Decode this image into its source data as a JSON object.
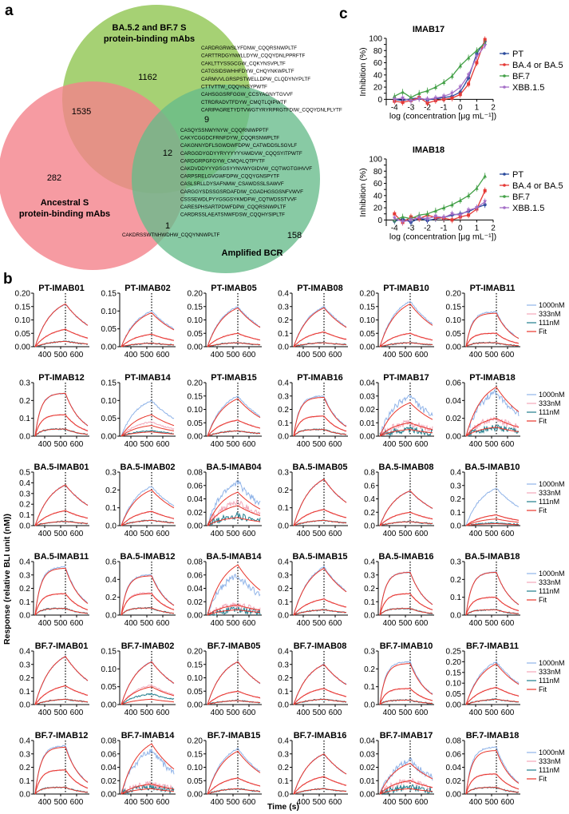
{
  "panels": {
    "a": "a",
    "b": "b",
    "c": "c"
  },
  "venn": {
    "circle_top_label": [
      "BA.5.2 and BF.7 S",
      "protein-binding mAbs"
    ],
    "circle_left_label": [
      "Ancestral S",
      "protein-binding mAbs"
    ],
    "circle_right_label": "Amplified BCR",
    "colors": {
      "top": "#9ccc65",
      "left": "#f4828b",
      "right": "#66bb8a"
    },
    "counts": {
      "top_only": "1162",
      "left_only": "282",
      "right_only": "158",
      "top_left": "1535",
      "top_right": "9",
      "all_three": "12",
      "left_right": "1"
    },
    "seq_top_right": [
      "CARDRGRWSLYFDNW_CQQRSNWPLTF",
      "CARTTRDGYNWLLDYW_CQQYDNLPPRFTF",
      "CAKLTTYSSGCGW_CQKYNSVPLTF",
      "CATGSIDSWHHFDYW_CHQYNKWPLTF",
      "CARMVVLGRSPSTWELLDPW_CLQDYNYPLTF",
      "CTTVTTW_CQQYNSYPWTF",
      "CAHSGGSRFGGW_CCSYAGNYTGVVF",
      "CTRDRADVTFDYW_CMQTLQIPWTF",
      "CARIPAGRETYDTVWGTYRYRPRGTFDIW_CQQYDNLPLYTF"
    ],
    "seq_all_three": [
      "CASQYSSNWYNYW_CQQRNIWPPTF",
      "CAKYCGGDCFRNFDYW_CQQRSNWPLTF",
      "CAKGNNYDFLSGWDWFDPW_CATWDDSLSGVLF",
      "CARGGDYGDYYRYYYYYYAMDVW_CQQSYITPWTF",
      "CARDGRPGFGYW_CMQALQTPYTF",
      "CAKDVDDYYYGSGSYYNVWYGIDVW_CQTWGTGIHVVF",
      "CARPSRELGVGWFDPW_CQQYGNSPYTF",
      "CASLSRLLDYSAFNMW_CSAWDSSLSAWVF",
      "CARGGYSDSSGSRDAFDIW_CGADHGSGSNFVWVF",
      "CSSSEWDLPYYGSGSYKMDFW_CQTWDSSTVVF",
      "CARESPHSARTPDWFDPW_CQQRSNWPLTF",
      "CARDRSSLAEATSNWFDSW_CQQHYSIPLTF"
    ],
    "seq_left_right": "CAKDRSSWTNHWDHW_CQQYNNWPLTF"
  },
  "panel_b": {
    "y_axis_label": "Response (relative BLI unit (nM))",
    "x_axis_label": "Time (s)",
    "x_ticks": [
      "400",
      "500",
      "600"
    ],
    "legend": [
      "1000nM",
      "333nM",
      "111nM",
      "Fit"
    ],
    "legend_colors": [
      "#8fb3e8",
      "#f2a7b9",
      "#1f7d8c",
      "#e8362b"
    ]
  },
  "chart_data": [
    {
      "type": "line",
      "title": "IMAB17",
      "xlabel": "log (concentration [μg mL⁻¹])",
      "ylabel": "Inhibition (%)",
      "xlim": [
        -4.5,
        2
      ],
      "ylim": [
        -10,
        100
      ],
      "x_ticks": [
        -4,
        -3,
        -2,
        -1,
        0,
        1,
        2
      ],
      "y_ticks": [
        0,
        10,
        20,
        30,
        40,
        50,
        60,
        70,
        80,
        90,
        100
      ],
      "x": [
        -4,
        -3.5,
        -3,
        -2.5,
        -2,
        -1.5,
        -1,
        -0.5,
        0,
        0.5,
        1,
        1.5
      ],
      "series": [
        {
          "name": "PT",
          "color": "#2a4a9c",
          "marker": "circle",
          "values": [
            0,
            -2,
            1,
            2,
            -1,
            1,
            3,
            5,
            12,
            35,
            75,
            95
          ]
        },
        {
          "name": "BA.4 or BA.5",
          "color": "#e53935",
          "marker": "square",
          "values": [
            -3,
            -5,
            -2,
            3,
            -6,
            -2,
            0,
            2,
            8,
            25,
            60,
            98
          ]
        },
        {
          "name": "BF.7",
          "color": "#43a047",
          "marker": "triangle",
          "values": [
            5,
            12,
            3,
            10,
            14,
            20,
            28,
            38,
            55,
            68,
            80,
            92
          ]
        },
        {
          "name": "XBB.1.5",
          "color": "#a46ec7",
          "marker": "triangle-down",
          "values": [
            0,
            2,
            -3,
            1,
            0,
            2,
            5,
            10,
            20,
            40,
            70,
            88
          ]
        }
      ]
    },
    {
      "type": "line",
      "title": "IMAB18",
      "xlabel": "log (concentration [μg mL⁻¹])",
      "ylabel": "Inhibition (%)",
      "xlim": [
        -4.5,
        2
      ],
      "ylim": [
        -10,
        100
      ],
      "x_ticks": [
        -4,
        -3,
        -2,
        -1,
        0,
        1,
        2
      ],
      "y_ticks": [
        0,
        10,
        20,
        30,
        40,
        50,
        60,
        70,
        80,
        90,
        100
      ],
      "x": [
        -4,
        -3.5,
        -3,
        -2.5,
        -2,
        -1.5,
        -1,
        -0.5,
        0,
        0.5,
        1,
        1.5
      ],
      "series": [
        {
          "name": "PT",
          "color": "#2a4a9c",
          "marker": "circle",
          "values": [
            -2,
            2,
            -4,
            3,
            -1,
            2,
            4,
            8,
            10,
            14,
            20,
            25
          ]
        },
        {
          "name": "BA.4 or BA.5",
          "color": "#e53935",
          "marker": "square",
          "values": [
            10,
            -4,
            5,
            2,
            8,
            4,
            3,
            0,
            5,
            8,
            18,
            48
          ]
        },
        {
          "name": "BF.7",
          "color": "#43a047",
          "marker": "triangle",
          "values": [
            0,
            5,
            2,
            8,
            10,
            15,
            20,
            25,
            32,
            40,
            52,
            72
          ]
        },
        {
          "name": "XBB.1.5",
          "color": "#a46ec7",
          "marker": "triangle-down",
          "values": [
            3,
            -3,
            0,
            4,
            2,
            6,
            4,
            10,
            8,
            16,
            20,
            30
          ]
        }
      ]
    }
  ],
  "bli": [
    {
      "title": "PT-IMAB01",
      "ticks": [
        "0.20",
        "0.15",
        "0.10",
        "0.05",
        "0.00"
      ],
      "ymax": 0.2,
      "peaks": [
        0.16,
        0.065,
        0.02
      ],
      "fit": [
        0.16,
        0.065,
        0.02
      ],
      "shape": "normal"
    },
    {
      "title": "PT-IMAB02",
      "ticks": [
        "0.15",
        "0.10",
        "0.05",
        "0.00"
      ],
      "ymax": 0.15,
      "peaks": [
        0.1,
        0.035,
        0.01
      ],
      "fit": [
        0.095,
        0.035,
        0.01
      ],
      "shape": "normal"
    },
    {
      "title": "PT-IMAB05",
      "ticks": [
        "0.20",
        "0.15",
        "0.10",
        "0.05",
        "0.00"
      ],
      "ymax": 0.2,
      "peaks": [
        0.15,
        0.05,
        0.015
      ],
      "fit": [
        0.145,
        0.05,
        0.015
      ],
      "shape": "normal"
    },
    {
      "title": "PT-IMAB08",
      "ticks": [
        "0.4",
        "0.3",
        "0.2",
        "0.1",
        "0.0"
      ],
      "ymax": 0.4,
      "peaks": [
        0.3,
        0.11,
        0.03
      ],
      "fit": [
        0.29,
        0.11,
        0.03
      ],
      "shape": "normal"
    },
    {
      "title": "PT-IMAB10",
      "ticks": [
        "0.20",
        "0.15",
        "0.10",
        "0.05",
        "0.00"
      ],
      "ymax": 0.2,
      "peaks": [
        0.17,
        0.05,
        0.015
      ],
      "fit": [
        0.16,
        0.05,
        0.015
      ],
      "shape": "normal"
    },
    {
      "title": "PT-IMAB11",
      "ticks": [
        "0.20",
        "0.15",
        "0.10",
        "0.05",
        "0.00"
      ],
      "ymax": 0.2,
      "peaks": [
        0.13,
        0.05,
        0.015
      ],
      "fit": [
        0.125,
        0.05,
        0.015
      ],
      "shape": "fast"
    },
    {
      "title": "PT-IMAB12",
      "ticks": [
        "0.3",
        "0.2",
        "0.1",
        "0.0"
      ],
      "ymax": 0.3,
      "peaks": [
        0.24,
        0.12,
        0.04
      ],
      "fit": [
        0.24,
        0.12,
        0.04
      ],
      "shape": "fast"
    },
    {
      "title": "PT-IMAB14",
      "ticks": [
        "0.15",
        "0.10",
        "0.05",
        "0.00"
      ],
      "ymax": 0.15,
      "peaks": [
        0.1,
        0.04,
        0.015
      ],
      "fit": [
        0.06,
        0.03,
        0.012
      ],
      "shape": "normal"
    },
    {
      "title": "PT-IMAB15",
      "ticks": [
        "0.20",
        "0.15",
        "0.10",
        "0.05",
        "0.00"
      ],
      "ymax": 0.2,
      "peaks": [
        0.15,
        0.06,
        0.02
      ],
      "fit": [
        0.14,
        0.06,
        0.02
      ],
      "shape": "normal"
    },
    {
      "title": "PT-IMAB16",
      "ticks": [
        "0.4",
        "0.3",
        "0.2",
        "0.1",
        "0.0"
      ],
      "ymax": 0.4,
      "peaks": [
        0.3,
        0.15,
        0.05
      ],
      "fit": [
        0.29,
        0.15,
        0.05
      ],
      "shape": "fast"
    },
    {
      "title": "PT-IMAB17",
      "ticks": [
        "0.04",
        "0.03",
        "0.02",
        "0.01",
        "0.00"
      ],
      "ymax": 0.04,
      "peaks": [
        0.03,
        0.01,
        0.005
      ],
      "fit": [
        0.025,
        0.01,
        0.005
      ],
      "shape": "noisy"
    },
    {
      "title": "PT-IMAB18",
      "ticks": [
        "0.06",
        "0.04",
        "0.02",
        "0.00"
      ],
      "ymax": 0.06,
      "peaks": [
        0.05,
        0.02,
        0.01
      ],
      "fit": [
        0.055,
        0.02,
        0.01
      ],
      "shape": "noisy"
    },
    {
      "title": "BA.5-IMAB01",
      "ticks": [
        "0.5",
        "0.4",
        "0.3",
        "0.2",
        "0.1",
        "0.0"
      ],
      "ymax": 0.5,
      "peaks": [
        0.38,
        0.14,
        0.04
      ],
      "fit": [
        0.38,
        0.14,
        0.04
      ],
      "shape": "normal"
    },
    {
      "title": "BA.5-IMAB02",
      "ticks": [
        "0.3",
        "0.2",
        "0.1",
        "0.0"
      ],
      "ymax": 0.3,
      "peaks": [
        0.22,
        0.08,
        0.03
      ],
      "fit": [
        0.2,
        0.08,
        0.03
      ],
      "shape": "normal"
    },
    {
      "title": "BA.5-IMAB04",
      "ticks": [
        "0.08",
        "0.06",
        "0.04",
        "0.02",
        "0.00"
      ],
      "ymax": 0.08,
      "peaks": [
        0.065,
        0.035,
        0.015
      ],
      "fit": [
        0.05,
        0.03,
        0.012
      ],
      "shape": "noisy"
    },
    {
      "title": "BA.5-IMAB05",
      "ticks": [
        "0.3",
        "0.2",
        "0.1",
        "0.0"
      ],
      "ymax": 0.3,
      "peaks": [
        0.26,
        0.09,
        0.03
      ],
      "fit": [
        0.26,
        0.09,
        0.03
      ],
      "shape": "normal"
    },
    {
      "title": "BA.5-IMAB08",
      "ticks": [
        "0.8",
        "0.6",
        "0.4",
        "0.2",
        "0.0"
      ],
      "ymax": 0.8,
      "peaks": [
        0.52,
        0.2,
        0.06
      ],
      "fit": [
        0.52,
        0.2,
        0.06
      ],
      "shape": "normal"
    },
    {
      "title": "BA.5-IMAB10",
      "ticks": [
        "0.4",
        "0.3",
        "0.2",
        "0.1",
        "0.0"
      ],
      "ymax": 0.4,
      "peaks": [
        0.28,
        0.08,
        0.02
      ],
      "fit": [
        0.08,
        0.05,
        0.015
      ],
      "shape": "normal"
    },
    {
      "title": "BA.5-IMAB11",
      "ticks": [
        "0.4",
        "0.3",
        "0.2",
        "0.1",
        "0.0"
      ],
      "ymax": 0.4,
      "peaks": [
        0.36,
        0.16,
        0.05
      ],
      "fit": [
        0.35,
        0.16,
        0.05
      ],
      "shape": "fast"
    },
    {
      "title": "BA.5-IMAB12",
      "ticks": [
        "0.6",
        "0.4",
        "0.2",
        "0.0"
      ],
      "ymax": 0.6,
      "peaks": [
        0.45,
        0.25,
        0.08
      ],
      "fit": [
        0.44,
        0.24,
        0.08
      ],
      "shape": "fast"
    },
    {
      "title": "BA.5-IMAB14",
      "ticks": [
        "0.08",
        "0.06",
        "0.04",
        "0.02",
        "0.00"
      ],
      "ymax": 0.08,
      "peaks": [
        0.06,
        0.015,
        0.008
      ],
      "fit": [
        0.075,
        0.015,
        0.008
      ],
      "shape": "noisy"
    },
    {
      "title": "BA.5-IMAB15",
      "ticks": [
        "0.4",
        "0.3",
        "0.2",
        "0.1",
        "0.0"
      ],
      "ymax": 0.4,
      "peaks": [
        0.36,
        0.12,
        0.04
      ],
      "fit": [
        0.35,
        0.12,
        0.04
      ],
      "shape": "normal"
    },
    {
      "title": "BA.5-IMAB16",
      "ticks": [
        "0.4",
        "0.3",
        "0.2",
        "0.1",
        "0.0"
      ],
      "ymax": 0.4,
      "peaks": [
        0.32,
        0.16,
        0.05
      ],
      "fit": [
        0.32,
        0.16,
        0.05
      ],
      "shape": "fast"
    },
    {
      "title": "BA.5-IMAB18",
      "ticks": [
        "0.3",
        "0.2",
        "0.1",
        "0.0"
      ],
      "ymax": 0.3,
      "peaks": [
        0.24,
        0.1,
        0.03
      ],
      "fit": [
        0.24,
        0.1,
        0.03
      ],
      "shape": "fast"
    },
    {
      "title": "BF.7-IMAB01",
      "ticks": [
        "0.4",
        "0.3",
        "0.2",
        "0.1",
        "0.0"
      ],
      "ymax": 0.4,
      "peaks": [
        0.36,
        0.14,
        0.04
      ],
      "fit": [
        0.36,
        0.14,
        0.04
      ],
      "shape": "normal"
    },
    {
      "title": "BF.7-IMAB02",
      "ticks": [
        "0.15",
        "0.10",
        "0.05",
        "0.00"
      ],
      "ymax": 0.15,
      "peaks": [
        0.12,
        0.055,
        0.03
      ],
      "fit": [
        0.12,
        0.05,
        0.015
      ],
      "shape": "normal"
    },
    {
      "title": "BF.7-IMAB05",
      "ticks": [
        "0.20",
        "0.15",
        "0.10",
        "0.05",
        "0.00"
      ],
      "ymax": 0.2,
      "peaks": [
        0.16,
        0.05,
        0.015
      ],
      "fit": [
        0.16,
        0.05,
        0.015
      ],
      "shape": "normal"
    },
    {
      "title": "BF.7-IMAB08",
      "ticks": [
        "0.4",
        "0.3",
        "0.2",
        "0.1",
        "0.0"
      ],
      "ymax": 0.4,
      "peaks": [
        0.3,
        0.12,
        0.04
      ],
      "fit": [
        0.3,
        0.12,
        0.04
      ],
      "shape": "normal"
    },
    {
      "title": "BF.7-IMAB10",
      "ticks": [
        "0.3",
        "0.2",
        "0.1",
        "0.0"
      ],
      "ymax": 0.3,
      "peaks": [
        0.24,
        0.09,
        0.025
      ],
      "fit": [
        0.23,
        0.09,
        0.025
      ],
      "shape": "fast"
    },
    {
      "title": "BF.7-IMAB11",
      "ticks": [
        "0.25",
        "0.20",
        "0.15",
        "0.10",
        "0.05",
        "0.00"
      ],
      "ymax": 0.25,
      "peaks": [
        0.2,
        0.08,
        0.025
      ],
      "fit": [
        0.19,
        0.08,
        0.025
      ],
      "shape": "normal"
    },
    {
      "title": "BF.7-IMAB12",
      "ticks": [
        "0.4",
        "0.3",
        "0.2",
        "0.1",
        "0.0"
      ],
      "ymax": 0.4,
      "peaks": [
        0.36,
        0.18,
        0.05
      ],
      "fit": [
        0.35,
        0.18,
        0.05
      ],
      "shape": "fast"
    },
    {
      "title": "BF.7-IMAB14",
      "ticks": [
        "0.08",
        "0.06",
        "0.04",
        "0.02",
        "0.00"
      ],
      "ymax": 0.08,
      "peaks": [
        0.065,
        0.015,
        0.01
      ],
      "fit": [
        0.075,
        0.015,
        0.008
      ],
      "shape": "noisy"
    },
    {
      "title": "BF.7-IMAB15",
      "ticks": [
        "0.20",
        "0.15",
        "0.10",
        "0.05",
        "0.00"
      ],
      "ymax": 0.2,
      "peaks": [
        0.17,
        0.06,
        0.02
      ],
      "fit": [
        0.16,
        0.06,
        0.02
      ],
      "shape": "normal"
    },
    {
      "title": "BF.7-IMAB16",
      "ticks": [
        "0.4",
        "0.3",
        "0.2",
        "0.1",
        "0.0"
      ],
      "ymax": 0.4,
      "peaks": [
        0.3,
        0.13,
        0.04
      ],
      "fit": [
        0.3,
        0.13,
        0.04
      ],
      "shape": "normal"
    },
    {
      "title": "BF.7-IMAB17",
      "ticks": [
        "0.04",
        "0.03",
        "0.02",
        "0.01",
        "0.00"
      ],
      "ymax": 0.04,
      "peaks": [
        0.025,
        0.01,
        0.005
      ],
      "fit": [
        0.023,
        0.01,
        0.004
      ],
      "shape": "noisy"
    },
    {
      "title": "BF.7-IMAB18",
      "ticks": [
        "0.08",
        "0.06",
        "0.04",
        "0.02",
        "0.00"
      ],
      "ymax": 0.08,
      "peaks": [
        0.07,
        0.03,
        0.01
      ],
      "fit": [
        0.065,
        0.03,
        0.01
      ],
      "shape": "fast"
    }
  ]
}
